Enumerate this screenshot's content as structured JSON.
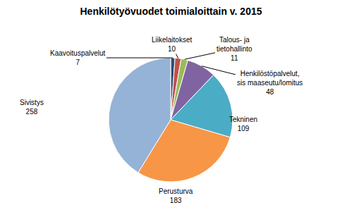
{
  "chart_data": {
    "type": "pie",
    "title": "Henkilötyövuodet toimialoittain v. 2015",
    "categories": [
      "Kaavoituspalvelut",
      "Liikelaitokset",
      "Talous- ja tietohallinto",
      "Henkilöstöpalvelut, sis maaseutu/lomitus",
      "Tekninen",
      "Perusturva",
      "Sivistys"
    ],
    "values": [
      7,
      10,
      11,
      48,
      109,
      183,
      258
    ],
    "colors": [
      "#2C4D75",
      "#C0504D",
      "#9BBB59",
      "#8064A2",
      "#4BACC6",
      "#F79646",
      "#95B3D7"
    ],
    "data_labels": true
  }
}
